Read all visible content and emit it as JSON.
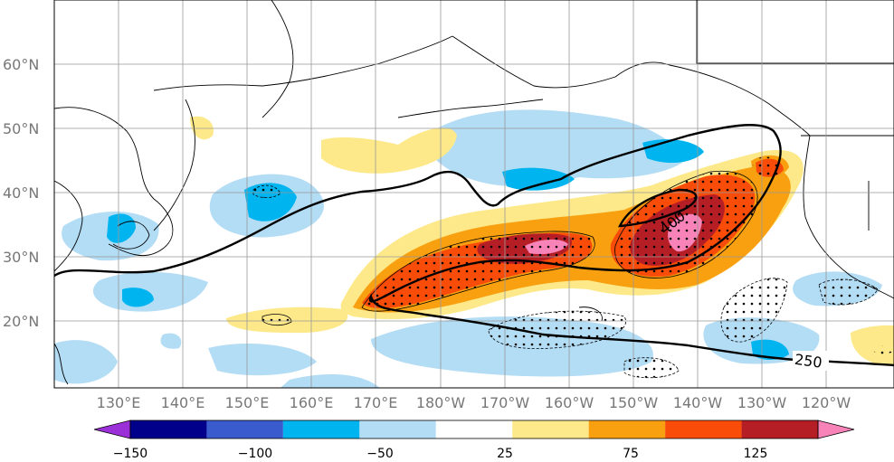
{
  "map": {
    "lat_labels": [
      "60°N",
      "50°N",
      "40°N",
      "30°N",
      "20°N"
    ],
    "lon_labels": [
      "130°E",
      "140°E",
      "150°E",
      "160°E",
      "170°E",
      "180°W",
      "170°W",
      "160°W",
      "150°W",
      "140°W",
      "130°W",
      "120°W"
    ],
    "contour_labels": [
      "400",
      "250"
    ]
  },
  "colorbar": {
    "colors": [
      "#9b30d9",
      "#00008b",
      "#3a5bcd",
      "#00b4f0",
      "#b3dcf5",
      "#ffffff",
      "#fde98a",
      "#f8a010",
      "#f84c08",
      "#b51e24",
      "#f783b8"
    ],
    "tick_labels": [
      "−150",
      "−100",
      "−50",
      "25",
      "75",
      "125"
    ]
  },
  "colors": {
    "light_blue": "#b3dcf5",
    "blue": "#00b4f0",
    "yellow": "#fde98a",
    "orange": "#f8a010",
    "red": "#f84c08",
    "dark_red": "#b51e24",
    "pink": "#f783b8"
  }
}
